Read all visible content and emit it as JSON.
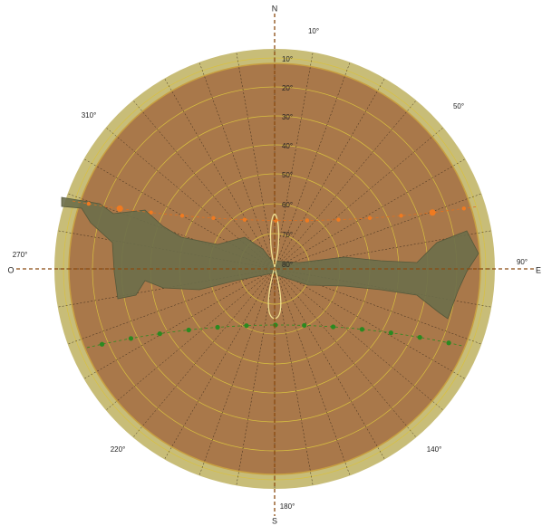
{
  "compass": {
    "north": "N",
    "south": "S",
    "west": "O",
    "east": "E"
  },
  "azimuth_labels": [
    "10°",
    "50°",
    "90°",
    "140°",
    "180°",
    "220°",
    "270°",
    "310°"
  ],
  "elevation_labels": [
    "10°",
    "20°",
    "30°",
    "40°",
    "50°",
    "60°",
    "70°",
    "80°"
  ]
}
